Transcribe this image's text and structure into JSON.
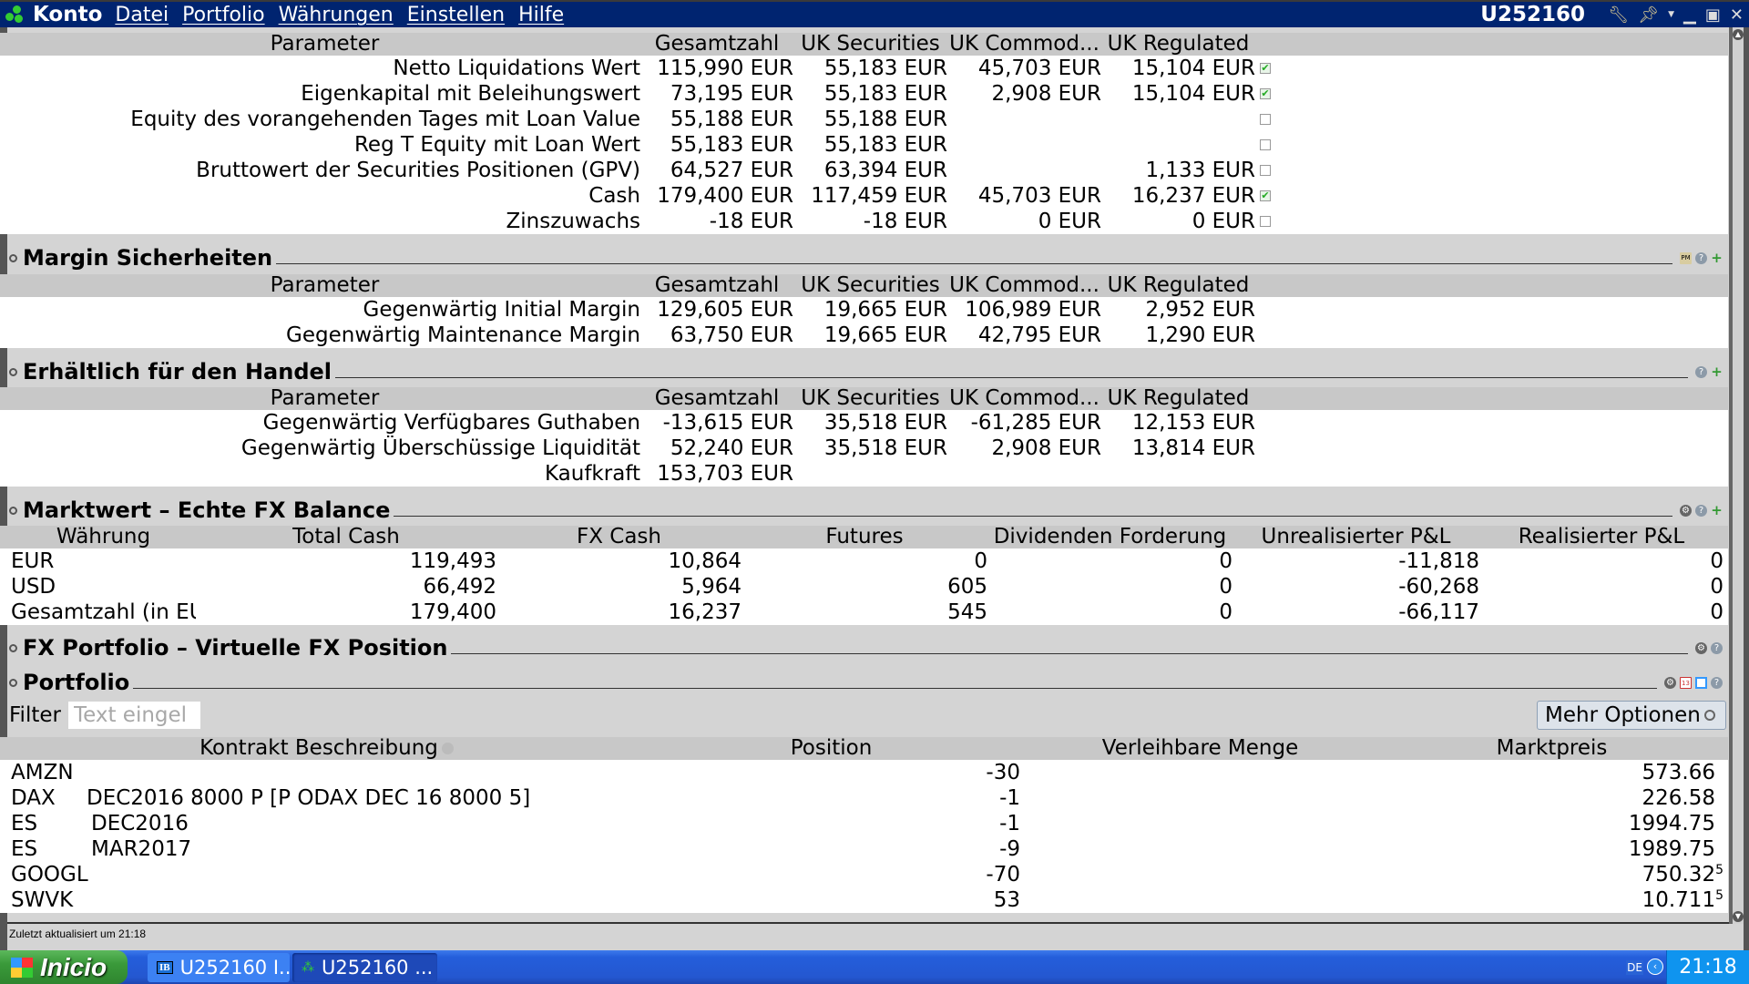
{
  "titlebar": {
    "app": "Konto",
    "menu": [
      "Datei",
      "Portfolio",
      "Währungen",
      "Einstellen",
      "Hilfe"
    ],
    "account": "U252160"
  },
  "balances": {
    "columns": [
      "Parameter",
      "Gesamtzahl",
      "UK Securities",
      "UK Commod...",
      "UK Regulated"
    ],
    "rows": [
      {
        "label": "Netto Liquidations Wert",
        "values": [
          "115,990 EUR",
          "55,183 EUR",
          "45,703 EUR",
          "15,104 EUR"
        ],
        "checked": true
      },
      {
        "label": "Eigenkapital mit Beleihungswert",
        "values": [
          "73,195 EUR",
          "55,183 EUR",
          "2,908 EUR",
          "15,104 EUR"
        ],
        "checked": true
      },
      {
        "label": "Equity des vorangehenden Tages mit Loan Value",
        "values": [
          "55,188 EUR",
          "55,188 EUR",
          "",
          ""
        ],
        "checked": false
      },
      {
        "label": "Reg T Equity mit Loan Wert",
        "values": [
          "55,183 EUR",
          "55,183 EUR",
          "",
          ""
        ],
        "checked": false
      },
      {
        "label": "Bruttowert der Securities Positionen (GPV)",
        "values": [
          "64,527 EUR",
          "63,394 EUR",
          "",
          "1,133 EUR"
        ],
        "checked": false
      },
      {
        "label": "Cash",
        "values": [
          "179,400 EUR",
          "117,459 EUR",
          "45,703 EUR",
          "16,237 EUR"
        ],
        "checked": true
      },
      {
        "label": "Zinszuwachs",
        "values": [
          "-18 EUR",
          "-18 EUR",
          "0 EUR",
          "0 EUR"
        ],
        "checked": false
      }
    ]
  },
  "margin": {
    "title": "Margin Sicherheiten",
    "columns": [
      "Parameter",
      "Gesamtzahl",
      "UK Securities",
      "UK Commod...",
      "UK Regulated"
    ],
    "rows": [
      {
        "label": "Gegenwärtig Initial Margin",
        "values": [
          "129,605 EUR",
          "19,665 EUR",
          "106,989 EUR",
          "2,952 EUR"
        ]
      },
      {
        "label": "Gegenwärtig Maintenance Margin",
        "values": [
          "63,750 EUR",
          "19,665 EUR",
          "42,795 EUR",
          "1,290 EUR"
        ]
      }
    ]
  },
  "available": {
    "title": "Erhältlich für den Handel",
    "columns": [
      "Parameter",
      "Gesamtzahl",
      "UK Securities",
      "UK Commod...",
      "UK Regulated"
    ],
    "rows": [
      {
        "label": "Gegenwärtig Verfügbares Guthaben",
        "values": [
          "-13,615 EUR",
          "35,518 EUR",
          "-61,285 EUR",
          "12,153 EUR"
        ]
      },
      {
        "label": "Gegenwärtig Überschüssige Liquidität",
        "values": [
          "52,240 EUR",
          "35,518 EUR",
          "2,908 EUR",
          "13,814 EUR"
        ]
      },
      {
        "label": "Kaufkraft",
        "values": [
          "153,703 EUR",
          "",
          "",
          ""
        ]
      }
    ]
  },
  "fx_balance": {
    "title": "Marktwert – Echte FX Balance",
    "columns": [
      "Währung",
      "Total Cash",
      "FX Cash",
      "Futures",
      "Dividenden Forderung",
      "Unrealisierter P&L",
      "Realisierter P&L"
    ],
    "rows": [
      [
        "EUR",
        "119,493",
        "10,864",
        "0",
        "0",
        "-11,818",
        "0"
      ],
      [
        "USD",
        "66,492",
        "5,964",
        "605",
        "0",
        "-60,268",
        "0"
      ],
      [
        "Gesamtzahl (in EUR)",
        "179,400",
        "16,237",
        "545",
        "0",
        "-66,117",
        "0"
      ]
    ]
  },
  "fx_portfolio": {
    "title": "FX Portfolio – Virtuelle FX Position"
  },
  "portfolio": {
    "title": "Portfolio",
    "filter_label": "Filter",
    "filter_placeholder": "Text eingel",
    "more_options": "Mehr Optionen",
    "columns": [
      "Kontrakt Beschreibung",
      "Position",
      "Verleihbare Menge",
      "Marktpreis"
    ],
    "rows": [
      {
        "symbol": "AMZN",
        "desc": "",
        "position": "-30",
        "lendable": "",
        "price": "573.66",
        "price_sup": ""
      },
      {
        "symbol": "DAX",
        "desc": "DEC2016 8000 P [P ODAX DEC 16  8000 5]",
        "position": "-1",
        "lendable": "",
        "price": "226.58",
        "price_sup": ""
      },
      {
        "symbol": "ES",
        "desc": "DEC2016",
        "position": "-1",
        "lendable": "",
        "price": "1994.75",
        "price_sup": ""
      },
      {
        "symbol": "ES",
        "desc": "MAR2017",
        "position": "-9",
        "lendable": "",
        "price": "1989.75",
        "price_sup": ""
      },
      {
        "symbol": "GOOGL",
        "desc": "",
        "position": "-70",
        "lendable": "",
        "price": "750.32",
        "price_sup": "5"
      },
      {
        "symbol": "SWVK",
        "desc": "",
        "position": "53",
        "lendable": "",
        "price": "10.711",
        "price_sup": "5"
      }
    ]
  },
  "status": "Zuletzt aktualisiert um 21:18",
  "taskbar": {
    "start": "Inicio",
    "tasks": [
      "U252160 I...",
      "U252160 ..."
    ],
    "lang": "DE",
    "clock": "21:18"
  },
  "colors": {
    "titlebar": "#002470",
    "check": "#22aa22",
    "taskbar": "#245edb"
  }
}
